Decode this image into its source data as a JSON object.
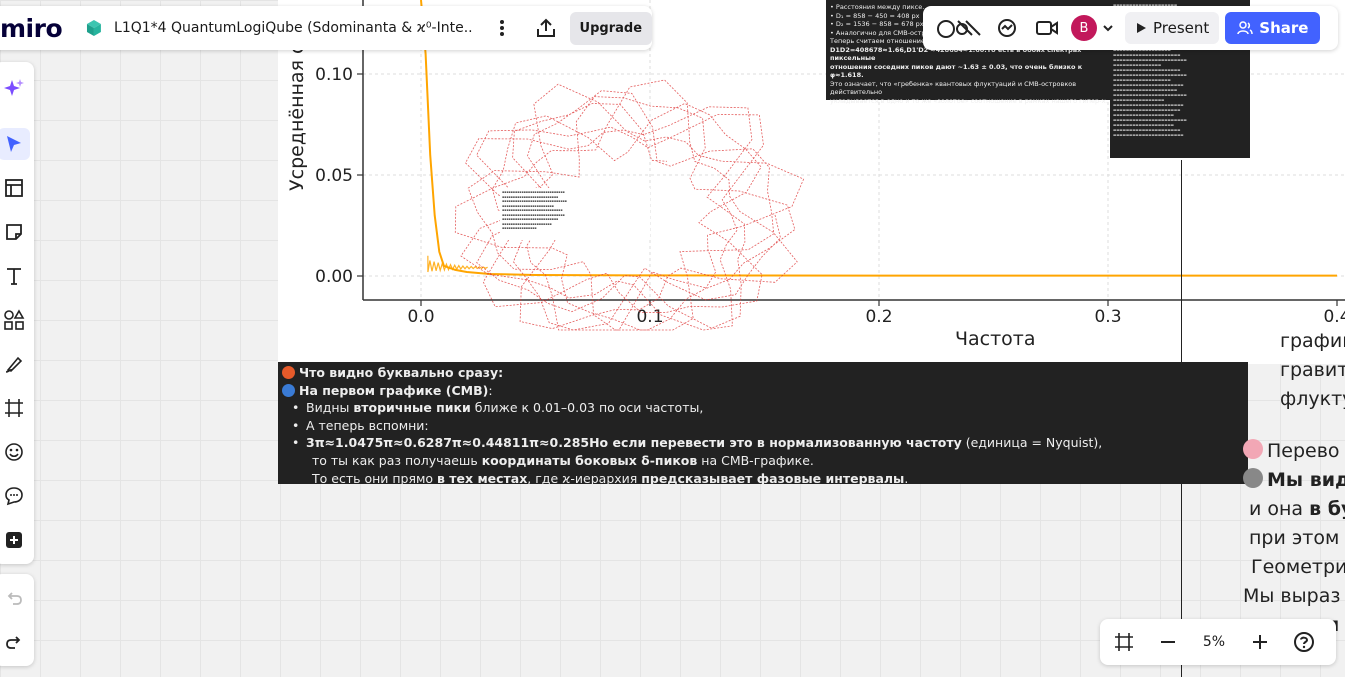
{
  "app": {
    "logo": "miro"
  },
  "board": {
    "title": "L1Q1*4 QuantumLogiQube (Sdominanta & ϰ⁰-Inte..."
  },
  "toolbar_top": {
    "upgrade_label": "Upgrade"
  },
  "toolbar_right": {
    "avatar_initial": "B",
    "present_label": "Present",
    "share_label": "Share"
  },
  "zoom": {
    "level": "5%"
  },
  "plot": {
    "xlabel": "Частота",
    "ylabel": "Усреднённая сп",
    "xticks": [
      "0.0",
      "0.1",
      "0.2",
      "0.3",
      "0.4"
    ],
    "yticks": [
      "0.00",
      "0.05",
      "0.10"
    ],
    "line_color": "#ffa500"
  },
  "chart_data": {
    "type": "line",
    "xlabel": "Частота",
    "ylabel": "Усреднённая сп",
    "x": [
      0.0,
      0.002,
      0.004,
      0.006,
      0.008,
      0.01,
      0.015,
      0.02,
      0.03,
      0.05,
      0.1,
      0.2,
      0.3,
      0.4
    ],
    "series": [
      {
        "values": [
          0.14,
          0.11,
          0.06,
          0.03,
          0.012,
          0.005,
          0.003,
          0.002,
          0.001,
          0.0005,
          0.0003,
          0.0002,
          0.0002,
          0.0002
        ]
      }
    ],
    "xlim": [
      -0.025,
      0.4
    ],
    "ylim": [
      -0.012,
      0.14
    ],
    "grid": true
  },
  "top_box": {
    "lines": [
      "• Расстояния между пиксе...",
      "• D₁ = 858 − 450 = 408 px",
      "• D₂ = 1536 − 858 = 678 px",
      "• Аналогично для CMB-остр...",
      "Теперь считаем отношение соседних шагов:",
      "D1D2=408678≈1.66,D1'D2'≈428684≈1.60.То есть в обоих спектрах пиксельные",
      "отношения соседних пиков дают ~1.63 ± 0.03, что очень близко к φ≈1.618.",
      "Это означает, что «гребенка» квантовых флуктуаций и CMB-островков действительно",
      "укладывается в одно и то же «золотое» соотношение в рамках нашего гипер-ϰ."
    ]
  },
  "main_box": {
    "heading": "Что видно буквально сразу:",
    "sub_bold": "На первом графике (CMB)",
    "sub_rest": ":",
    "b1_pre": "Видны ",
    "b1_bold": "вторичные пики",
    "b1_post": " ближе к 0.01–0.03 по оси частоты,",
    "b2": "А теперь вспомни:",
    "b3_bold1": "3π≈1.0475π≈0.6287π≈0.44811π≈0.285Но если перевести это в ",
    "b3_bold2": "нормализованную частоту",
    "b3_post": " (единица = Nyquist),",
    "c1_pre": "то ты как раз получаешь ",
    "c1_bold": "координаты боковых δ-пиков",
    "c1_post": " на CMB-графике.",
    "c2_pre": "То есть они прямо ",
    "c2_bold1": "в тех местах",
    "c2_mid": ", где ϰ-иерархия ",
    "c2_bold2": "предсказывает фазовые интервалы",
    "c2_post": "."
  },
  "right_text_1": [
    "графин",
    "гравит",
    "флукту"
  ],
  "right_text_2": {
    "l1": "Перево",
    "l2_bold": "Мы вид",
    "l3_pre": "и она ",
    "l3_bold": "в бу",
    "l4": "при этом",
    "l5": "Геометри",
    "l6": "Мы выраз",
    "l7": "амп"
  }
}
